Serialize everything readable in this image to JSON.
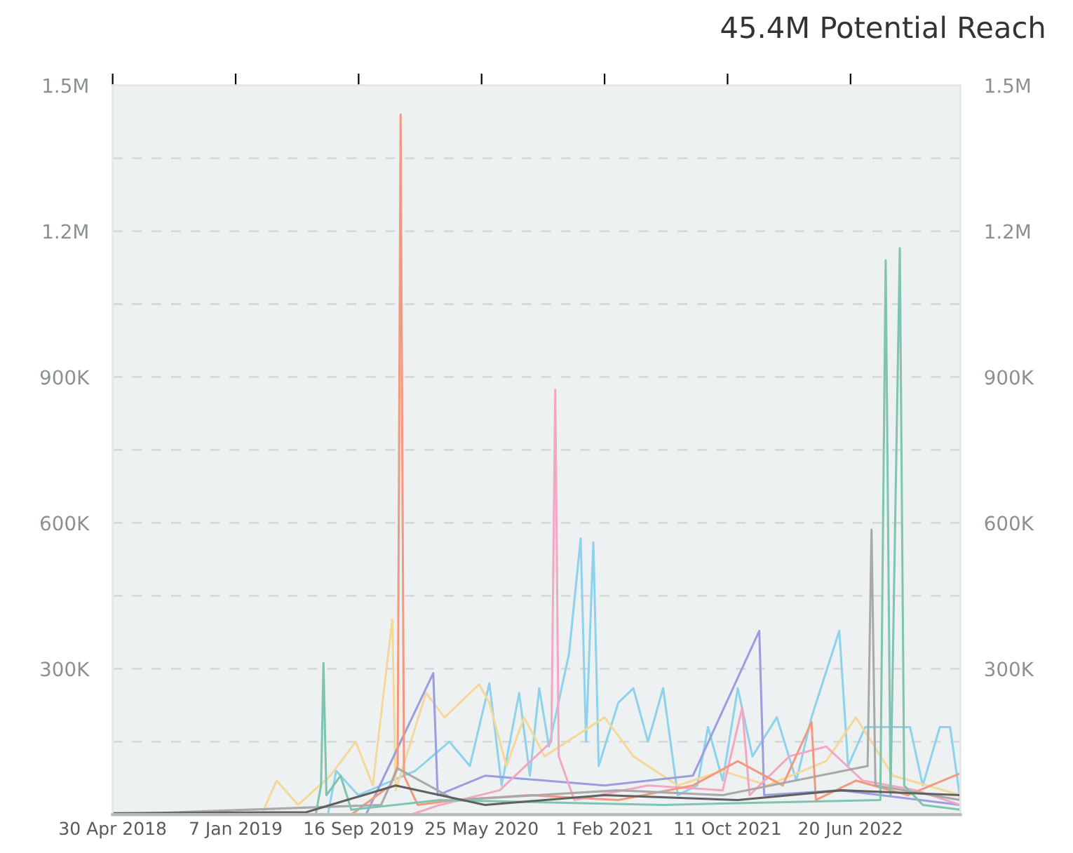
{
  "chart_data": {
    "type": "line",
    "title": "45.4M Potential Reach",
    "xlim": [
      "2018-04-30",
      "2023-01-31"
    ],
    "xticks": [
      {
        "value": "2018-04-30",
        "label": "30 Apr 2018"
      },
      {
        "value": "2019-01-07",
        "label": "7 Jan 2019"
      },
      {
        "value": "2019-09-16",
        "label": "16 Sep 2019"
      },
      {
        "value": "2020-05-25",
        "label": "25 May 2020"
      },
      {
        "value": "2021-02-01",
        "label": "1 Feb 2021"
      },
      {
        "value": "2021-10-11",
        "label": "11 Oct 2021"
      },
      {
        "value": "2022-06-20",
        "label": "20 Jun 2022"
      }
    ],
    "ylim": [
      0,
      1500000
    ],
    "yticks": [
      {
        "value": 150000,
        "label": null
      },
      {
        "value": 300000,
        "label": "300K"
      },
      {
        "value": 450000,
        "label": null
      },
      {
        "value": 600000,
        "label": "600K"
      },
      {
        "value": 750000,
        "label": null
      },
      {
        "value": 900000,
        "label": "900K"
      },
      {
        "value": 1050000,
        "label": null
      },
      {
        "value": 1200000,
        "label": "1.2M"
      },
      {
        "value": 1350000,
        "label": null
      },
      {
        "value": 1500000,
        "label": "1.5M"
      }
    ],
    "y2lim": [
      0,
      1500000
    ],
    "y2ticks": [
      {
        "value": 150000,
        "label": null
      },
      {
        "value": 300000,
        "label": "300K"
      },
      {
        "value": 450000,
        "label": null
      },
      {
        "value": 600000,
        "label": "600K"
      },
      {
        "value": 750000,
        "label": null
      },
      {
        "value": 900000,
        "label": "900K"
      },
      {
        "value": 1050000,
        "label": null
      },
      {
        "value": 1200000,
        "label": "1.2M"
      },
      {
        "value": 1350000,
        "label": null
      },
      {
        "value": 1500000,
        "label": "1.5M"
      }
    ],
    "grid": "y",
    "line_style": "solid",
    "marker": "none",
    "series": [
      {
        "color": "#8fd2ec",
        "x": [
          "2018-04-30",
          "2019-07-15",
          "2019-08-01",
          "2019-09-15",
          "2020-01-10",
          "2020-03-20",
          "2020-05-01",
          "2020-06-10",
          "2020-07-05",
          "2020-08-10",
          "2020-09-01",
          "2020-09-20",
          "2020-10-10",
          "2020-11-20",
          "2020-12-14",
          "2020-12-25",
          "2021-01-09",
          "2021-01-20",
          "2021-03-01",
          "2021-04-01",
          "2021-05-01",
          "2021-06-01",
          "2021-07-01",
          "2021-08-10",
          "2021-09-01",
          "2021-10-01",
          "2021-11-01",
          "2021-12-01",
          "2022-01-20",
          "2022-03-01",
          "2022-04-01",
          "2022-05-28",
          "2022-06-15",
          "2022-07-20",
          "2022-10-20",
          "2022-11-15",
          "2022-12-20",
          "2023-01-10",
          "2023-01-31"
        ],
        "values": [
          0,
          0,
          90000,
          40000,
          90000,
          150000,
          100000,
          270000,
          60000,
          250000,
          80000,
          260000,
          140000,
          330000,
          568000,
          150000,
          560000,
          100000,
          230000,
          260000,
          150000,
          260000,
          40000,
          60000,
          180000,
          70000,
          260000,
          120000,
          200000,
          70000,
          200000,
          378000,
          100000,
          180000,
          180000,
          60000,
          180000,
          180000,
          30000
        ]
      },
      {
        "color": "#f3d89a",
        "x": [
          "2018-04-30",
          "2019-03-01",
          "2019-04-01",
          "2019-05-15",
          "2019-07-20",
          "2019-09-10",
          "2019-10-15",
          "2019-11-24",
          "2019-12-01",
          "2020-02-01",
          "2020-03-10",
          "2020-05-20",
          "2020-06-10",
          "2020-07-15",
          "2020-08-20",
          "2020-10-01",
          "2021-02-01",
          "2021-04-01",
          "2021-07-01",
          "2021-10-01",
          "2022-01-01",
          "2022-05-01",
          "2022-07-01",
          "2022-09-15",
          "2023-01-31"
        ],
        "values": [
          0,
          0,
          70000,
          20000,
          80000,
          150000,
          60000,
          401000,
          50000,
          250000,
          200000,
          268000,
          230000,
          100000,
          200000,
          120000,
          200000,
          120000,
          60000,
          90000,
          60000,
          110000,
          200000,
          80000,
          40000
        ]
      },
      {
        "color": "#9a9ee0",
        "x": [
          "2018-04-30",
          "2019-10-01",
          "2020-02-16",
          "2020-02-25",
          "2020-06-01",
          "2021-02-01",
          "2021-08-01",
          "2021-12-15",
          "2021-12-25",
          "2022-06-01",
          "2023-01-31"
        ],
        "values": [
          0,
          0,
          291000,
          40000,
          80000,
          60000,
          80000,
          378000,
          40000,
          50000,
          20000
        ]
      },
      {
        "color": "#f2a8c4",
        "x": [
          "2018-04-30",
          "2020-01-01",
          "2020-03-01",
          "2020-07-01",
          "2020-10-15",
          "2020-10-23",
          "2020-10-30",
          "2020-12-01",
          "2021-05-01",
          "2021-10-01",
          "2021-11-10",
          "2021-11-25",
          "2022-02-15",
          "2022-05-01",
          "2022-07-15",
          "2022-11-01",
          "2023-01-31"
        ],
        "values": [
          0,
          0,
          20000,
          50000,
          150000,
          874000,
          120000,
          30000,
          60000,
          50000,
          220000,
          40000,
          120000,
          140000,
          70000,
          50000,
          20000
        ]
      },
      {
        "color": "#f29a80",
        "x": [
          "2018-04-30",
          "2019-09-01",
          "2019-11-20",
          "2019-12-05",
          "2019-12-11",
          "2019-12-18",
          "2020-01-15",
          "2020-04-01",
          "2020-09-01",
          "2021-03-01",
          "2021-08-01",
          "2021-11-01",
          "2022-02-01",
          "2022-04-01",
          "2022-04-10",
          "2022-07-01",
          "2022-10-15",
          "2023-01-31"
        ],
        "values": [
          0,
          0,
          60000,
          100000,
          1440000,
          80000,
          20000,
          30000,
          40000,
          30000,
          60000,
          110000,
          60000,
          190000,
          30000,
          70000,
          40000,
          85000
        ]
      },
      {
        "color": "#a9a9a9",
        "x": [
          "2018-04-30",
          "2019-11-01",
          "2019-12-05",
          "2020-04-01",
          "2021-03-01",
          "2021-10-01",
          "2022-07-25",
          "2022-08-02",
          "2022-08-10",
          "2023-01-31"
        ],
        "values": [
          0,
          20000,
          95000,
          30000,
          50000,
          40000,
          100000,
          586000,
          60000,
          30000
        ]
      },
      {
        "color": "#7ec4b0",
        "x": [
          "2018-04-30",
          "2019-06-20",
          "2019-07-01",
          "2019-07-06",
          "2019-07-12",
          "2019-08-10",
          "2019-09-01",
          "2020-03-01",
          "2021-06-01",
          "2022-08-20",
          "2022-08-31",
          "2022-09-10",
          "2022-09-29",
          "2022-10-08",
          "2022-11-15",
          "2023-01-31"
        ],
        "values": [
          0,
          0,
          60000,
          312000,
          40000,
          80000,
          10000,
          30000,
          20000,
          30000,
          1140000,
          40000,
          1165000,
          60000,
          20000,
          10000
        ]
      },
      {
        "color": "#606060",
        "x": [
          "2018-04-30",
          "2019-06-01",
          "2019-12-01",
          "2020-06-01",
          "2021-02-01",
          "2021-11-01",
          "2022-06-01",
          "2023-01-31"
        ],
        "values": [
          3000,
          5000,
          60000,
          20000,
          40000,
          30000,
          50000,
          40000
        ]
      }
    ]
  }
}
